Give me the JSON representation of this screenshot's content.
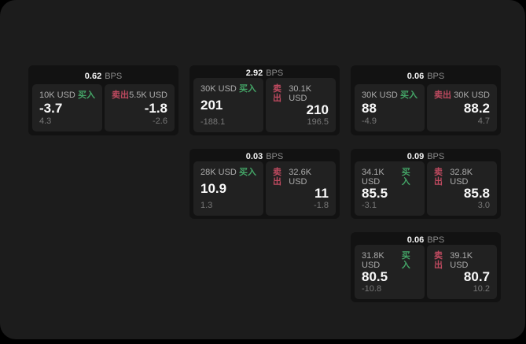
{
  "colors": {
    "window_bg": "#1c1c1c",
    "card_bg": "#121212",
    "panel_bg": "#212121",
    "buy_green": "#44a567",
    "sell_red": "#bf4a60",
    "muted": "#8c8c8c",
    "dim": "#787878"
  },
  "labels": {
    "bps": "BPS",
    "buy": "买入",
    "sell": "卖出"
  },
  "cards": [
    {
      "col": 1,
      "row": 1,
      "bps": "0.62",
      "buy": {
        "amount": "10K USD",
        "price": "-3.7",
        "delta": "4.3"
      },
      "sell": {
        "amount": "5.5K USD",
        "price": "-1.8",
        "delta": "-2.6"
      }
    },
    {
      "col": 2,
      "row": 1,
      "bps": "2.92",
      "buy": {
        "amount": "30K USD",
        "price": "201",
        "delta": "-188.1"
      },
      "sell": {
        "amount": "30.1K USD",
        "price": "210",
        "delta": "196.5"
      }
    },
    {
      "col": 3,
      "row": 1,
      "bps": "0.06",
      "buy": {
        "amount": "30K USD",
        "price": "88",
        "delta": "-4.9"
      },
      "sell": {
        "amount": "30K USD",
        "price": "88.2",
        "delta": "4.7"
      }
    },
    {
      "col": 2,
      "row": 2,
      "bps": "0.03",
      "buy": {
        "amount": "28K USD",
        "price": "10.9",
        "delta": "1.3"
      },
      "sell": {
        "amount": "32.6K USD",
        "price": "11",
        "delta": "-1.8"
      }
    },
    {
      "col": 3,
      "row": 2,
      "bps": "0.09",
      "buy": {
        "amount": "34.1K USD",
        "price": "85.5",
        "delta": "-3.1"
      },
      "sell": {
        "amount": "32.8K USD",
        "price": "85.8",
        "delta": "3.0"
      }
    },
    {
      "col": 3,
      "row": 3,
      "bps": "0.06",
      "buy": {
        "amount": "31.8K USD",
        "price": "80.5",
        "delta": "-10.8"
      },
      "sell": {
        "amount": "39.1K USD",
        "price": "80.7",
        "delta": "10.2"
      }
    }
  ]
}
